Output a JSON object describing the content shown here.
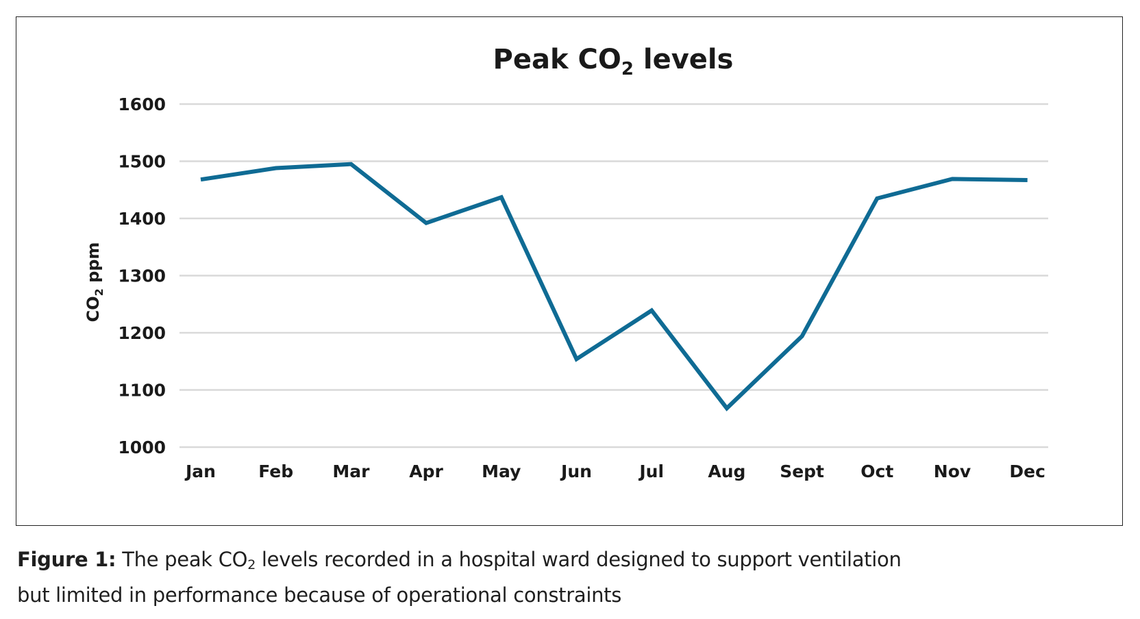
{
  "colors": {
    "line": "#0f6b94",
    "grid": "#d9d9d9",
    "text": "#1a1a1a"
  },
  "chart_data": {
    "type": "line",
    "title_prefix": "Peak CO",
    "title_subscript": "2",
    "title_suffix": " levels",
    "ylabel_prefix": "CO",
    "ylabel_subscript": "2",
    "ylabel_suffix": " ppm",
    "xlabel": "",
    "categories": [
      "Jan",
      "Feb",
      "Mar",
      "Apr",
      "May",
      "Jun",
      "Jul",
      "Aug",
      "Sept",
      "Oct",
      "Nov",
      "Dec"
    ],
    "series": [
      {
        "values": [
          1468,
          1488,
          1495,
          1392,
          1437,
          1154,
          1239,
          1068,
          1194,
          1435,
          1469,
          1467
        ]
      }
    ],
    "ylim": [
      1000,
      1600
    ],
    "yticks": [
      "1000",
      "1100",
      "1200",
      "1300",
      "1400",
      "1500",
      "1600"
    ],
    "grid": true,
    "legend": "none"
  },
  "caption": {
    "lead": "Figure 1:",
    "line1_prefix": " The peak CO",
    "line1_subscript": "2",
    "line1_suffix": " levels recorded in a hospital ward designed to support ventilation",
    "line2": "but limited in performance because of operational constraints"
  }
}
